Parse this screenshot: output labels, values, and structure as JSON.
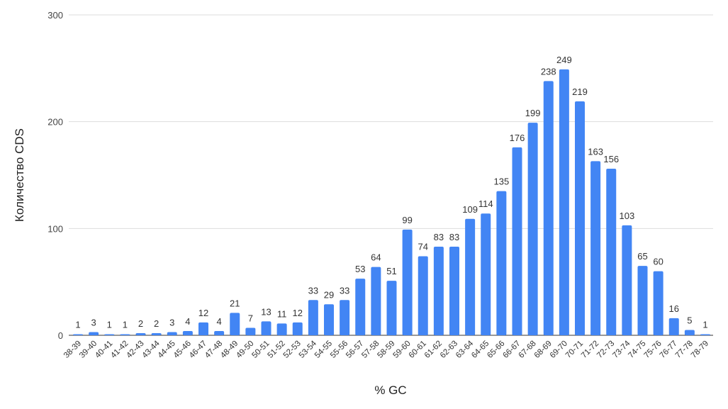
{
  "chart_data": {
    "type": "bar",
    "title": "",
    "xlabel": "% GC",
    "ylabel": "Количество CDS",
    "ylim": [
      0,
      300
    ],
    "yticks": [
      0,
      100,
      200,
      300
    ],
    "grid": true,
    "bar_color": "#4285f4",
    "categories": [
      "38-39",
      "39-40",
      "40-41",
      "41-42",
      "42-43",
      "43-44",
      "44-45",
      "45-46",
      "46-47",
      "47-48",
      "48-49",
      "49-50",
      "50-51",
      "51-52",
      "52-53",
      "53-54",
      "54-55",
      "55-56",
      "56-57",
      "57-58",
      "58-59",
      "59-60",
      "60-61",
      "61-62",
      "62-63",
      "63-64",
      "64-65",
      "65-66",
      "66-67",
      "67-68",
      "68-69",
      "69-70",
      "70-71",
      "71-72",
      "72-73",
      "73-74",
      "74-75",
      "75-76",
      "76-77",
      "77-78",
      "78-79"
    ],
    "values": [
      1,
      3,
      1,
      1,
      2,
      2,
      3,
      4,
      12,
      4,
      21,
      7,
      13,
      11,
      12,
      33,
      29,
      33,
      53,
      64,
      51,
      99,
      74,
      83,
      83,
      109,
      114,
      135,
      176,
      199,
      238,
      249,
      219,
      163,
      156,
      103,
      65,
      60,
      16,
      5,
      1
    ]
  }
}
